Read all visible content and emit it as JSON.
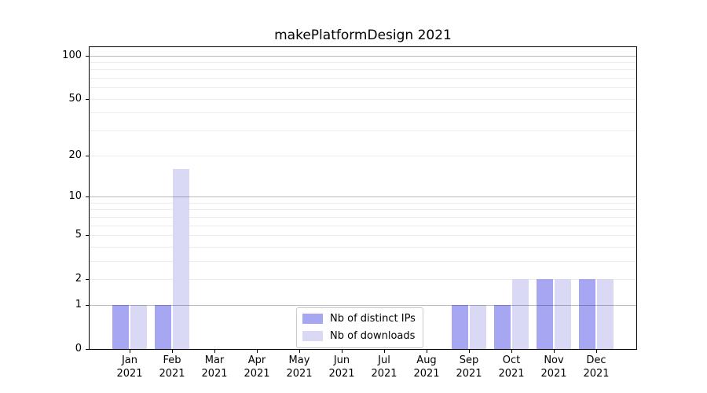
{
  "title": "makePlatformDesign 2021",
  "chart_data": {
    "type": "bar",
    "title": "makePlatformDesign 2021",
    "categories": [
      "Jan\n2021",
      "Feb\n2021",
      "Mar\n2021",
      "Apr\n2021",
      "May\n2021",
      "Jun\n2021",
      "Jul\n2021",
      "Aug\n2021",
      "Sep\n2021",
      "Oct\n2021",
      "Nov\n2021",
      "Dec\n2021"
    ],
    "series": [
      {
        "name": "Nb of distinct IPs",
        "color": "#a6a6f2",
        "values": [
          1,
          1,
          0,
          0,
          0,
          0,
          0,
          0,
          1,
          1,
          2,
          2
        ]
      },
      {
        "name": "Nb of downloads",
        "color": "#d9d9f5",
        "values": [
          1,
          16,
          0,
          0,
          0,
          0,
          0,
          0,
          1,
          2,
          2,
          2
        ]
      }
    ],
    "xlabel": "",
    "ylabel": "",
    "yscale": "log1p",
    "ylim": [
      0,
      114
    ],
    "yticks": [
      0,
      1,
      2,
      5,
      10,
      20,
      50,
      100
    ],
    "minor_gridline_values": [
      2,
      3,
      4,
      5,
      6,
      7,
      8,
      9,
      20,
      30,
      40,
      50,
      60,
      70,
      80,
      90
    ],
    "major_gridline_values": [
      1,
      10,
      100
    ],
    "grid": "both",
    "legend_position": "lower center",
    "colors": {
      "bar_distinct_ips": "#a6a6f2",
      "bar_downloads": "#d9d9f5",
      "major_grid": "#bdbdbd",
      "minor_grid": "#ececec",
      "spine": "#000000",
      "background": "#ffffff"
    }
  }
}
